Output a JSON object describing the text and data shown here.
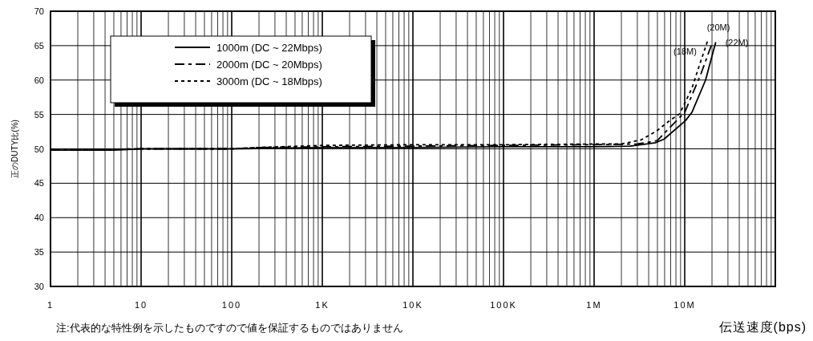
{
  "chart_data": {
    "type": "line",
    "xlabel": "伝送速度(bps)",
    "ylabel": "正のDUTY比(%)",
    "log": "x",
    "grid": true,
    "legend": "top left",
    "xlim": [
      1,
      100000000
    ],
    "ylim": [
      30,
      70
    ],
    "xticks": [
      {
        "value": 1,
        "label": "1"
      },
      {
        "value": 10,
        "label": "10"
      },
      {
        "value": 100,
        "label": "100"
      },
      {
        "value": 1000,
        "label": "1K"
      },
      {
        "value": 10000,
        "label": "10K"
      },
      {
        "value": 100000,
        "label": "100K"
      },
      {
        "value": 1000000,
        "label": "1M"
      },
      {
        "value": 10000000,
        "label": "10M"
      },
      {
        "value": 100000000,
        "label": null
      }
    ],
    "yticks": [
      30,
      35,
      40,
      45,
      50,
      55,
      60,
      65,
      70
    ],
    "series": [
      {
        "name": "1000m (DC ~ 22Mbps)",
        "color": "#000000",
        "line_style": "solid",
        "x": [
          1,
          5,
          10,
          100,
          1000,
          10000,
          100000,
          1000000,
          2500000,
          4800000,
          5900000,
          10200000,
          12000000,
          17000000,
          22000000
        ],
        "values": [
          49.8,
          49.8,
          50,
          50,
          50.2,
          50.2,
          50.3,
          50.3,
          50.4,
          50.9,
          51.4,
          54.1,
          55.3,
          60,
          65.5
        ]
      },
      {
        "name": "2000m (DC ~ 20Mbps)",
        "color": "#000000",
        "line_style": "dashed",
        "x": [
          1,
          10,
          100,
          200,
          1000,
          10000,
          100000,
          1000000,
          3000000,
          5000000,
          6300000,
          10000000,
          15000000,
          20000000
        ],
        "values": [
          49.8,
          50,
          50,
          50.2,
          50.3,
          50.4,
          50.5,
          50.6,
          50.7,
          51.2,
          52.6,
          55.3,
          60.8,
          65.3
        ]
      },
      {
        "name": "3000m (DC ~ 18Mbps)",
        "color": "#000000",
        "line_style": "dotted",
        "x": [
          1,
          10,
          100,
          200,
          1000,
          10000,
          100000,
          1000000,
          2000000,
          3300000,
          4900000,
          6800000,
          8800000,
          12000000,
          15000000,
          18000000
        ],
        "values": [
          49.8,
          50,
          50,
          50.2,
          50.5,
          50.6,
          50.6,
          50.7,
          50.7,
          51.3,
          52.6,
          54.1,
          55.1,
          58.8,
          62.7,
          65.8
        ]
      }
    ],
    "annotations": [
      {
        "text": "(22M)",
        "x": 22000000,
        "y": 65.5
      },
      {
        "text": "(20M)",
        "x": 20000000,
        "y": 65.3
      },
      {
        "text": "(18M)",
        "x": 18000000,
        "y": 65.8
      },
      "注:代表的な特性例を示したものですので値を保証するものではありません"
    ]
  }
}
